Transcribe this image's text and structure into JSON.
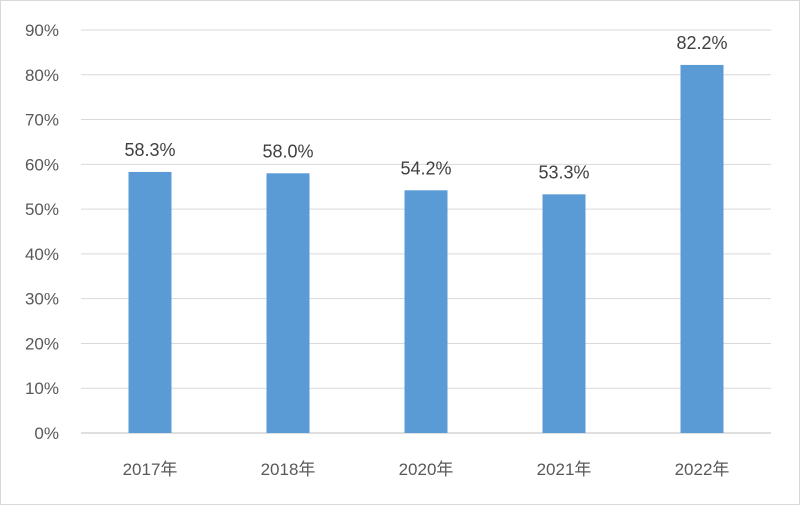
{
  "chart_data": {
    "type": "bar",
    "categories": [
      "2017年",
      "2018年",
      "2020年",
      "2021年",
      "2022年"
    ],
    "values": [
      58.3,
      58.0,
      54.2,
      53.3,
      82.2
    ],
    "data_labels": [
      "58.3%",
      "58.0%",
      "54.2%",
      "53.3%",
      "82.2%"
    ],
    "y_ticks": [
      "0%",
      "10%",
      "20%",
      "30%",
      "40%",
      "50%",
      "60%",
      "70%",
      "80%",
      "90%"
    ],
    "y_tick_values": [
      0,
      10,
      20,
      30,
      40,
      50,
      60,
      70,
      80,
      90
    ],
    "ylim": [
      0,
      90
    ],
    "grid": true,
    "legend": "none",
    "bar_color": "#5b9bd5"
  }
}
